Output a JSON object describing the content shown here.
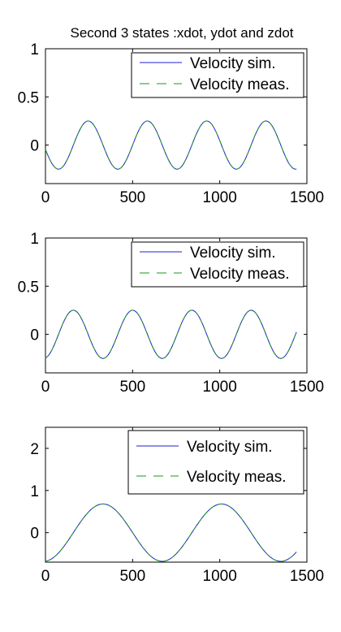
{
  "figure": {
    "title": "Second 3 states :xdot, ydot and zdot"
  },
  "colors": {
    "simulated": "#1f1fd6",
    "measured": "#1a9a1a",
    "axis": "#000000"
  },
  "chart_data": [
    {
      "type": "line",
      "title": "Second 3 states :xdot, ydot and zdot",
      "xlabel": "",
      "ylabel": "",
      "xlim": [
        0,
        1500
      ],
      "ylim": [
        -0.4,
        1
      ],
      "xticks": [
        0,
        500,
        1000,
        1500
      ],
      "yticks": [
        0,
        0.5,
        1
      ],
      "xtick_labels": [
        "0",
        "500",
        "1000",
        "1500"
      ],
      "ytick_labels": [
        "0",
        "0.5",
        "1"
      ],
      "legend": {
        "position": "top-right",
        "entries": [
          "Velocity sim.",
          "Velocity meas."
        ]
      },
      "grid": false,
      "series": [
        {
          "name": "Velocity sim.",
          "style": "solid",
          "x_range": [
            0,
            1440
          ],
          "amplitude": 0.25,
          "period": 340,
          "peak_x": 245,
          "offset": 0
        },
        {
          "name": "Velocity meas.",
          "style": "dashed",
          "x_range": [
            0,
            1440
          ],
          "amplitude": 0.25,
          "period": 340,
          "peak_x": 245,
          "offset": 0
        }
      ]
    },
    {
      "type": "line",
      "title": "",
      "xlabel": "",
      "ylabel": "",
      "xlim": [
        0,
        1500
      ],
      "ylim": [
        -0.4,
        1
      ],
      "xticks": [
        0,
        500,
        1000,
        1500
      ],
      "yticks": [
        0,
        0.5,
        1
      ],
      "xtick_labels": [
        "0",
        "500",
        "1000",
        "1500"
      ],
      "ytick_labels": [
        "0",
        "0.5",
        "1"
      ],
      "legend": {
        "position": "top-right",
        "entries": [
          "Velocity sim.",
          "Velocity meas."
        ]
      },
      "grid": false,
      "series": [
        {
          "name": "Velocity sim.",
          "style": "solid",
          "x_range": [
            0,
            1440
          ],
          "amplitude": 0.25,
          "period": 340,
          "peak_x": 160,
          "offset": 0
        },
        {
          "name": "Velocity meas.",
          "style": "dashed",
          "x_range": [
            0,
            1440
          ],
          "amplitude": 0.25,
          "period": 340,
          "peak_x": 160,
          "offset": 0
        }
      ]
    },
    {
      "type": "line",
      "title": "",
      "xlabel": "",
      "ylabel": "",
      "xlim": [
        0,
        1500
      ],
      "ylim": [
        -0.7,
        2.5
      ],
      "xticks": [
        0,
        500,
        1000,
        1500
      ],
      "yticks": [
        0,
        1,
        2
      ],
      "xtick_labels": [
        "0",
        "500",
        "1000",
        "1500"
      ],
      "ytick_labels": [
        "0",
        "1",
        "2"
      ],
      "legend": {
        "position": "top-right",
        "entries": [
          "Velocity sim.",
          "Velocity meas."
        ]
      },
      "grid": false,
      "series": [
        {
          "name": "Velocity sim.",
          "style": "solid",
          "x_range": [
            0,
            1440
          ],
          "amplitude": 0.68,
          "period": 680,
          "peak_x": 330,
          "offset": 0
        },
        {
          "name": "Velocity meas.",
          "style": "dashed",
          "x_range": [
            0,
            1440
          ],
          "amplitude": 0.68,
          "period": 680,
          "peak_x": 330,
          "offset": 0
        }
      ]
    }
  ]
}
